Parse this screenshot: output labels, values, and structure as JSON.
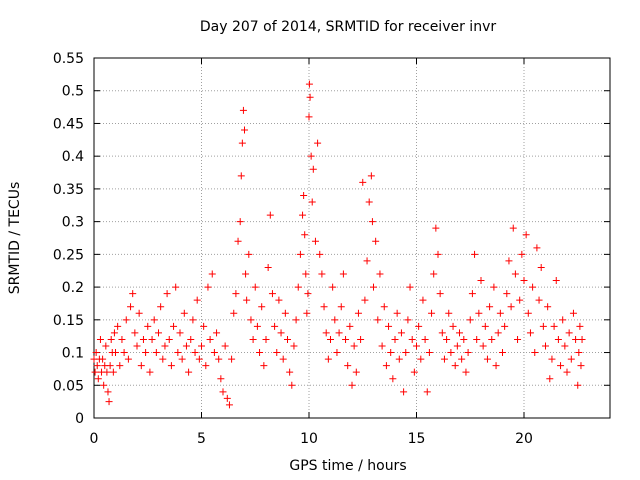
{
  "chart_data": {
    "type": "scatter",
    "title": "Day 207 of 2014, SRMTID for receiver invr",
    "xlabel": "GPS time / hours",
    "ylabel": "SRMTID / TECUs",
    "xlim": [
      0,
      24
    ],
    "ylim": [
      0,
      0.55
    ],
    "xticks": [
      0,
      5,
      10,
      15,
      20
    ],
    "yticks": [
      0,
      0.05,
      0.1,
      0.15,
      0.2,
      0.25,
      0.3,
      0.35,
      0.4,
      0.45,
      0.5,
      0.55
    ],
    "xtick_labels": [
      "0",
      "5",
      "10",
      "15",
      "20"
    ],
    "ytick_labels": [
      "0",
      "0.05",
      "0.1",
      "0.15",
      "0.2",
      "0.25",
      "0.3",
      "0.35",
      "0.4",
      "0.45",
      "0.5",
      "0.55"
    ],
    "grid": true,
    "marker": "+",
    "color": "#ff0000",
    "series": [
      {
        "name": "SRMTID",
        "points": [
          [
            0.0,
            0.09
          ],
          [
            0.05,
            0.07
          ],
          [
            0.1,
            0.1
          ],
          [
            0.15,
            0.08
          ],
          [
            0.2,
            0.06
          ],
          [
            0.25,
            0.09
          ],
          [
            0.3,
            0.12
          ],
          [
            0.35,
            0.07
          ],
          [
            0.4,
            0.09
          ],
          [
            0.45,
            0.05
          ],
          [
            0.5,
            0.08
          ],
          [
            0.55,
            0.11
          ],
          [
            0.6,
            0.07
          ],
          [
            0.65,
            0.04
          ],
          [
            0.7,
            0.025
          ],
          [
            0.75,
            0.08
          ],
          [
            0.8,
            0.12
          ],
          [
            0.85,
            0.1
          ],
          [
            0.9,
            0.07
          ],
          [
            0.95,
            0.13
          ],
          [
            1.0,
            0.1
          ],
          [
            1.1,
            0.14
          ],
          [
            1.2,
            0.08
          ],
          [
            1.3,
            0.12
          ],
          [
            1.4,
            0.1
          ],
          [
            1.5,
            0.15
          ],
          [
            1.6,
            0.09
          ],
          [
            1.7,
            0.17
          ],
          [
            1.8,
            0.19
          ],
          [
            1.9,
            0.13
          ],
          [
            2.0,
            0.11
          ],
          [
            2.1,
            0.16
          ],
          [
            2.2,
            0.08
          ],
          [
            2.3,
            0.12
          ],
          [
            2.4,
            0.1
          ],
          [
            2.5,
            0.14
          ],
          [
            2.6,
            0.07
          ],
          [
            2.7,
            0.12
          ],
          [
            2.8,
            0.15
          ],
          [
            2.9,
            0.1
          ],
          [
            3.0,
            0.13
          ],
          [
            3.1,
            0.17
          ],
          [
            3.2,
            0.09
          ],
          [
            3.3,
            0.11
          ],
          [
            3.4,
            0.19
          ],
          [
            3.5,
            0.12
          ],
          [
            3.6,
            0.08
          ],
          [
            3.7,
            0.14
          ],
          [
            3.8,
            0.2
          ],
          [
            3.9,
            0.1
          ],
          [
            4.0,
            0.13
          ],
          [
            4.1,
            0.09
          ],
          [
            4.2,
            0.16
          ],
          [
            4.3,
            0.11
          ],
          [
            4.4,
            0.07
          ],
          [
            4.5,
            0.12
          ],
          [
            4.6,
            0.15
          ],
          [
            4.7,
            0.1
          ],
          [
            4.8,
            0.18
          ],
          [
            4.9,
            0.09
          ],
          [
            5.0,
            0.11
          ],
          [
            5.1,
            0.14
          ],
          [
            5.2,
            0.08
          ],
          [
            5.3,
            0.2
          ],
          [
            5.4,
            0.12
          ],
          [
            5.5,
            0.22
          ],
          [
            5.6,
            0.1
          ],
          [
            5.7,
            0.13
          ],
          [
            5.8,
            0.09
          ],
          [
            5.9,
            0.06
          ],
          [
            6.0,
            0.04
          ],
          [
            6.1,
            0.11
          ],
          [
            6.2,
            0.03
          ],
          [
            6.3,
            0.02
          ],
          [
            6.4,
            0.09
          ],
          [
            6.5,
            0.16
          ],
          [
            6.6,
            0.19
          ],
          [
            6.7,
            0.27
          ],
          [
            6.8,
            0.3
          ],
          [
            6.85,
            0.37
          ],
          [
            6.9,
            0.42
          ],
          [
            6.95,
            0.47
          ],
          [
            7.0,
            0.44
          ],
          [
            7.05,
            0.22
          ],
          [
            7.1,
            0.18
          ],
          [
            7.2,
            0.25
          ],
          [
            7.3,
            0.15
          ],
          [
            7.4,
            0.12
          ],
          [
            7.5,
            0.2
          ],
          [
            7.6,
            0.14
          ],
          [
            7.7,
            0.1
          ],
          [
            7.8,
            0.17
          ],
          [
            7.9,
            0.08
          ],
          [
            8.0,
            0.12
          ],
          [
            8.1,
            0.23
          ],
          [
            8.2,
            0.31
          ],
          [
            8.3,
            0.19
          ],
          [
            8.4,
            0.14
          ],
          [
            8.5,
            0.1
          ],
          [
            8.6,
            0.18
          ],
          [
            8.7,
            0.13
          ],
          [
            8.8,
            0.09
          ],
          [
            8.9,
            0.16
          ],
          [
            9.0,
            0.12
          ],
          [
            9.1,
            0.07
          ],
          [
            9.2,
            0.05
          ],
          [
            9.3,
            0.11
          ],
          [
            9.4,
            0.15
          ],
          [
            9.5,
            0.2
          ],
          [
            9.6,
            0.25
          ],
          [
            9.7,
            0.31
          ],
          [
            9.75,
            0.34
          ],
          [
            9.8,
            0.28
          ],
          [
            9.85,
            0.22
          ],
          [
            9.9,
            0.16
          ],
          [
            9.95,
            0.19
          ],
          [
            10.0,
            0.46
          ],
          [
            10.02,
            0.51
          ],
          [
            10.05,
            0.49
          ],
          [
            10.1,
            0.4
          ],
          [
            10.15,
            0.33
          ],
          [
            10.2,
            0.38
          ],
          [
            10.3,
            0.27
          ],
          [
            10.4,
            0.42
          ],
          [
            10.5,
            0.25
          ],
          [
            10.6,
            0.22
          ],
          [
            10.7,
            0.17
          ],
          [
            10.8,
            0.13
          ],
          [
            10.9,
            0.09
          ],
          [
            11.0,
            0.12
          ],
          [
            11.1,
            0.2
          ],
          [
            11.2,
            0.15
          ],
          [
            11.3,
            0.1
          ],
          [
            11.4,
            0.13
          ],
          [
            11.5,
            0.17
          ],
          [
            11.6,
            0.22
          ],
          [
            11.7,
            0.12
          ],
          [
            11.8,
            0.08
          ],
          [
            11.9,
            0.14
          ],
          [
            12.0,
            0.05
          ],
          [
            12.1,
            0.11
          ],
          [
            12.2,
            0.07
          ],
          [
            12.3,
            0.16
          ],
          [
            12.4,
            0.12
          ],
          [
            12.5,
            0.36
          ],
          [
            12.6,
            0.18
          ],
          [
            12.7,
            0.24
          ],
          [
            12.8,
            0.33
          ],
          [
            12.9,
            0.37
          ],
          [
            12.95,
            0.3
          ],
          [
            13.0,
            0.2
          ],
          [
            13.1,
            0.27
          ],
          [
            13.2,
            0.15
          ],
          [
            13.3,
            0.22
          ],
          [
            13.4,
            0.11
          ],
          [
            13.5,
            0.17
          ],
          [
            13.6,
            0.08
          ],
          [
            13.7,
            0.14
          ],
          [
            13.8,
            0.1
          ],
          [
            13.9,
            0.06
          ],
          [
            14.0,
            0.12
          ],
          [
            14.1,
            0.16
          ],
          [
            14.2,
            0.09
          ],
          [
            14.3,
            0.13
          ],
          [
            14.4,
            0.04
          ],
          [
            14.5,
            0.1
          ],
          [
            14.6,
            0.15
          ],
          [
            14.7,
            0.2
          ],
          [
            14.8,
            0.12
          ],
          [
            14.9,
            0.07
          ],
          [
            15.0,
            0.11
          ],
          [
            15.1,
            0.14
          ],
          [
            15.2,
            0.09
          ],
          [
            15.3,
            0.18
          ],
          [
            15.4,
            0.12
          ],
          [
            15.5,
            0.04
          ],
          [
            15.6,
            0.1
          ],
          [
            15.7,
            0.16
          ],
          [
            15.8,
            0.22
          ],
          [
            15.9,
            0.29
          ],
          [
            16.0,
            0.25
          ],
          [
            16.1,
            0.19
          ],
          [
            16.2,
            0.13
          ],
          [
            16.3,
            0.09
          ],
          [
            16.4,
            0.12
          ],
          [
            16.5,
            0.16
          ],
          [
            16.6,
            0.1
          ],
          [
            16.7,
            0.14
          ],
          [
            16.8,
            0.08
          ],
          [
            16.9,
            0.11
          ],
          [
            17.0,
            0.13
          ],
          [
            17.1,
            0.09
          ],
          [
            17.2,
            0.12
          ],
          [
            17.3,
            0.07
          ],
          [
            17.4,
            0.1
          ],
          [
            17.5,
            0.15
          ],
          [
            17.6,
            0.19
          ],
          [
            17.7,
            0.25
          ],
          [
            17.8,
            0.12
          ],
          [
            17.9,
            0.16
          ],
          [
            18.0,
            0.21
          ],
          [
            18.1,
            0.11
          ],
          [
            18.2,
            0.14
          ],
          [
            18.3,
            0.09
          ],
          [
            18.4,
            0.17
          ],
          [
            18.5,
            0.12
          ],
          [
            18.6,
            0.2
          ],
          [
            18.7,
            0.08
          ],
          [
            18.8,
            0.13
          ],
          [
            18.9,
            0.16
          ],
          [
            19.0,
            0.1
          ],
          [
            19.1,
            0.14
          ],
          [
            19.2,
            0.19
          ],
          [
            19.3,
            0.24
          ],
          [
            19.4,
            0.17
          ],
          [
            19.5,
            0.29
          ],
          [
            19.6,
            0.22
          ],
          [
            19.7,
            0.12
          ],
          [
            19.8,
            0.18
          ],
          [
            19.9,
            0.25
          ],
          [
            20.0,
            0.21
          ],
          [
            20.1,
            0.28
          ],
          [
            20.2,
            0.16
          ],
          [
            20.3,
            0.13
          ],
          [
            20.4,
            0.2
          ],
          [
            20.5,
            0.1
          ],
          [
            20.6,
            0.26
          ],
          [
            20.7,
            0.18
          ],
          [
            20.8,
            0.23
          ],
          [
            20.9,
            0.14
          ],
          [
            21.0,
            0.11
          ],
          [
            21.1,
            0.17
          ],
          [
            21.2,
            0.06
          ],
          [
            21.3,
            0.09
          ],
          [
            21.4,
            0.14
          ],
          [
            21.5,
            0.21
          ],
          [
            21.6,
            0.12
          ],
          [
            21.7,
            0.08
          ],
          [
            21.8,
            0.15
          ],
          [
            21.9,
            0.11
          ],
          [
            22.0,
            0.07
          ],
          [
            22.1,
            0.13
          ],
          [
            22.2,
            0.09
          ],
          [
            22.3,
            0.16
          ],
          [
            22.4,
            0.12
          ],
          [
            22.5,
            0.05
          ],
          [
            22.55,
            0.1
          ],
          [
            22.6,
            0.14
          ],
          [
            22.65,
            0.08
          ],
          [
            22.7,
            0.12
          ]
        ]
      }
    ]
  }
}
